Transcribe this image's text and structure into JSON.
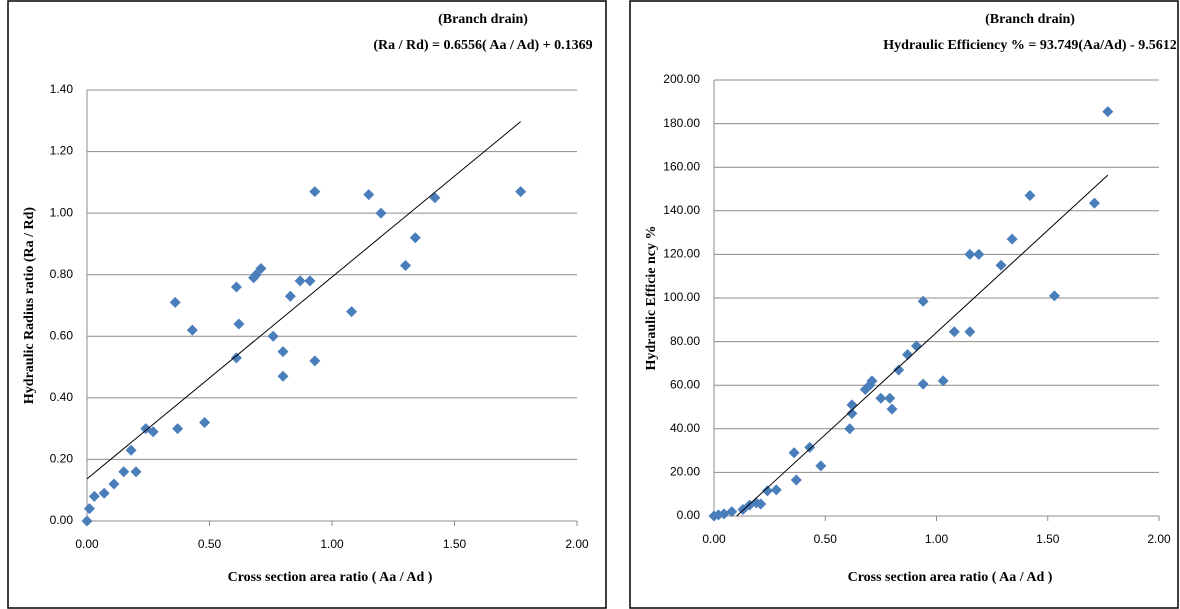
{
  "chart_data": [
    {
      "type": "scatter",
      "title": "(Branch drain)",
      "annotation": "(Ra / Rd) = 0.6556( Aa / Ad) + 0.1369",
      "x_label": "Cross section area ratio ( Aa / Ad )",
      "y_label": "Hydraulic  Radius  ratio (Ra / Rd)",
      "xlim": [
        0,
        2
      ],
      "ylim": [
        0,
        1.4
      ],
      "xticks": [
        {
          "value": 0,
          "label": "0.00"
        },
        {
          "value": 0.5,
          "label": "0.50"
        },
        {
          "value": 1,
          "label": "1.00"
        },
        {
          "value": 1.5,
          "label": "1.50"
        },
        {
          "value": 2,
          "label": "2.00"
        }
      ],
      "yticks": [
        {
          "value": 0,
          "label": "0.00"
        },
        {
          "value": 0.2,
          "label": "0.20"
        },
        {
          "value": 0.4,
          "label": "0.40"
        },
        {
          "value": 0.6,
          "label": "0.60"
        },
        {
          "value": 0.8,
          "label": "0.80"
        },
        {
          "value": 1,
          "label": "1.00"
        },
        {
          "value": 1.2,
          "label": "1.20"
        },
        {
          "value": 1.4,
          "label": "1.40"
        }
      ],
      "grid": true,
      "trendline": {
        "slope": 0.6556,
        "intercept": 0.1369
      },
      "series": [
        {
          "color": "#4a7ebb",
          "x": [
            0,
            0.01,
            0.03,
            0.07,
            0.11,
            0.15,
            0.2,
            0.18,
            0.24,
            0.27,
            0.36,
            0.37,
            0.43,
            0.48,
            0.61,
            0.61,
            0.62,
            0.68,
            0.69,
            0.71,
            0.76,
            0.8,
            0.8,
            0.83,
            0.87,
            0.91,
            0.93,
            0.93,
            1.08,
            1.15,
            1.2,
            1.3,
            1.34,
            1.42,
            1.77
          ],
          "values": [
            0,
            0.04,
            0.08,
            0.09,
            0.12,
            0.16,
            0.16,
            0.23,
            0.3,
            0.29,
            0.71,
            0.3,
            0.62,
            0.32,
            0.76,
            0.53,
            0.64,
            0.79,
            0.8,
            0.82,
            0.6,
            0.55,
            0.47,
            0.73,
            0.78,
            0.78,
            0.52,
            1.07,
            0.68,
            1.06,
            1,
            0.83,
            0.92,
            1.05,
            1.07
          ]
        }
      ]
    },
    {
      "type": "scatter",
      "title": "(Branch drain)",
      "annotation": "Hydraulic Efficiency % = 93.749(Aa/Ad)  - 9.5612",
      "x_label": "Cross section area ratio ( Aa / Ad )",
      "y_label": "Hydraulic Efficie ncy %",
      "xlim": [
        0,
        2
      ],
      "ylim": [
        0,
        200
      ],
      "xticks": [
        {
          "value": 0,
          "label": "0.00"
        },
        {
          "value": 0.5,
          "label": "0.50"
        },
        {
          "value": 1,
          "label": "1.00"
        },
        {
          "value": 1.5,
          "label": "1.50"
        },
        {
          "value": 2,
          "label": "2.00"
        }
      ],
      "yticks": [
        {
          "value": 0,
          "label": "0.00"
        },
        {
          "value": 20,
          "label": "20.00"
        },
        {
          "value": 40,
          "label": "40.00"
        },
        {
          "value": 60,
          "label": "60.00"
        },
        {
          "value": 80,
          "label": "80.00"
        },
        {
          "value": 100,
          "label": "100.00"
        },
        {
          "value": 120,
          "label": "120.00"
        },
        {
          "value": 140,
          "label": "140.00"
        },
        {
          "value": 160,
          "label": "160.00"
        },
        {
          "value": 180,
          "label": "180.00"
        },
        {
          "value": 200,
          "label": "200.00"
        }
      ],
      "grid": true,
      "trendline": {
        "slope": 93.749,
        "intercept": -9.5612
      },
      "series": [
        {
          "color": "#4a7ebb",
          "x": [
            0,
            0.02,
            0.045,
            0.08,
            0.13,
            0.16,
            0.19,
            0.21,
            0.24,
            0.28,
            0.36,
            0.37,
            0.43,
            0.48,
            0.61,
            0.62,
            0.62,
            0.68,
            0.7,
            0.71,
            0.75,
            0.79,
            0.8,
            0.83,
            0.87,
            0.91,
            0.94,
            0.94,
            1.03,
            1.08,
            1.15,
            1.15,
            1.19,
            1.29,
            1.34,
            1.42,
            1.53,
            1.71,
            1.77
          ],
          "values": [
            0,
            0.5,
            1,
            2,
            3,
            5,
            6,
            5.5,
            11.5,
            12,
            29,
            16.5,
            31.5,
            23,
            40,
            51,
            47,
            58,
            60,
            62,
            54,
            54,
            49,
            67,
            74,
            78,
            98.5,
            60.5,
            62,
            84.5,
            120,
            84.5,
            120,
            115,
            127,
            147,
            101,
            143.5,
            185.5
          ]
        }
      ]
    }
  ]
}
